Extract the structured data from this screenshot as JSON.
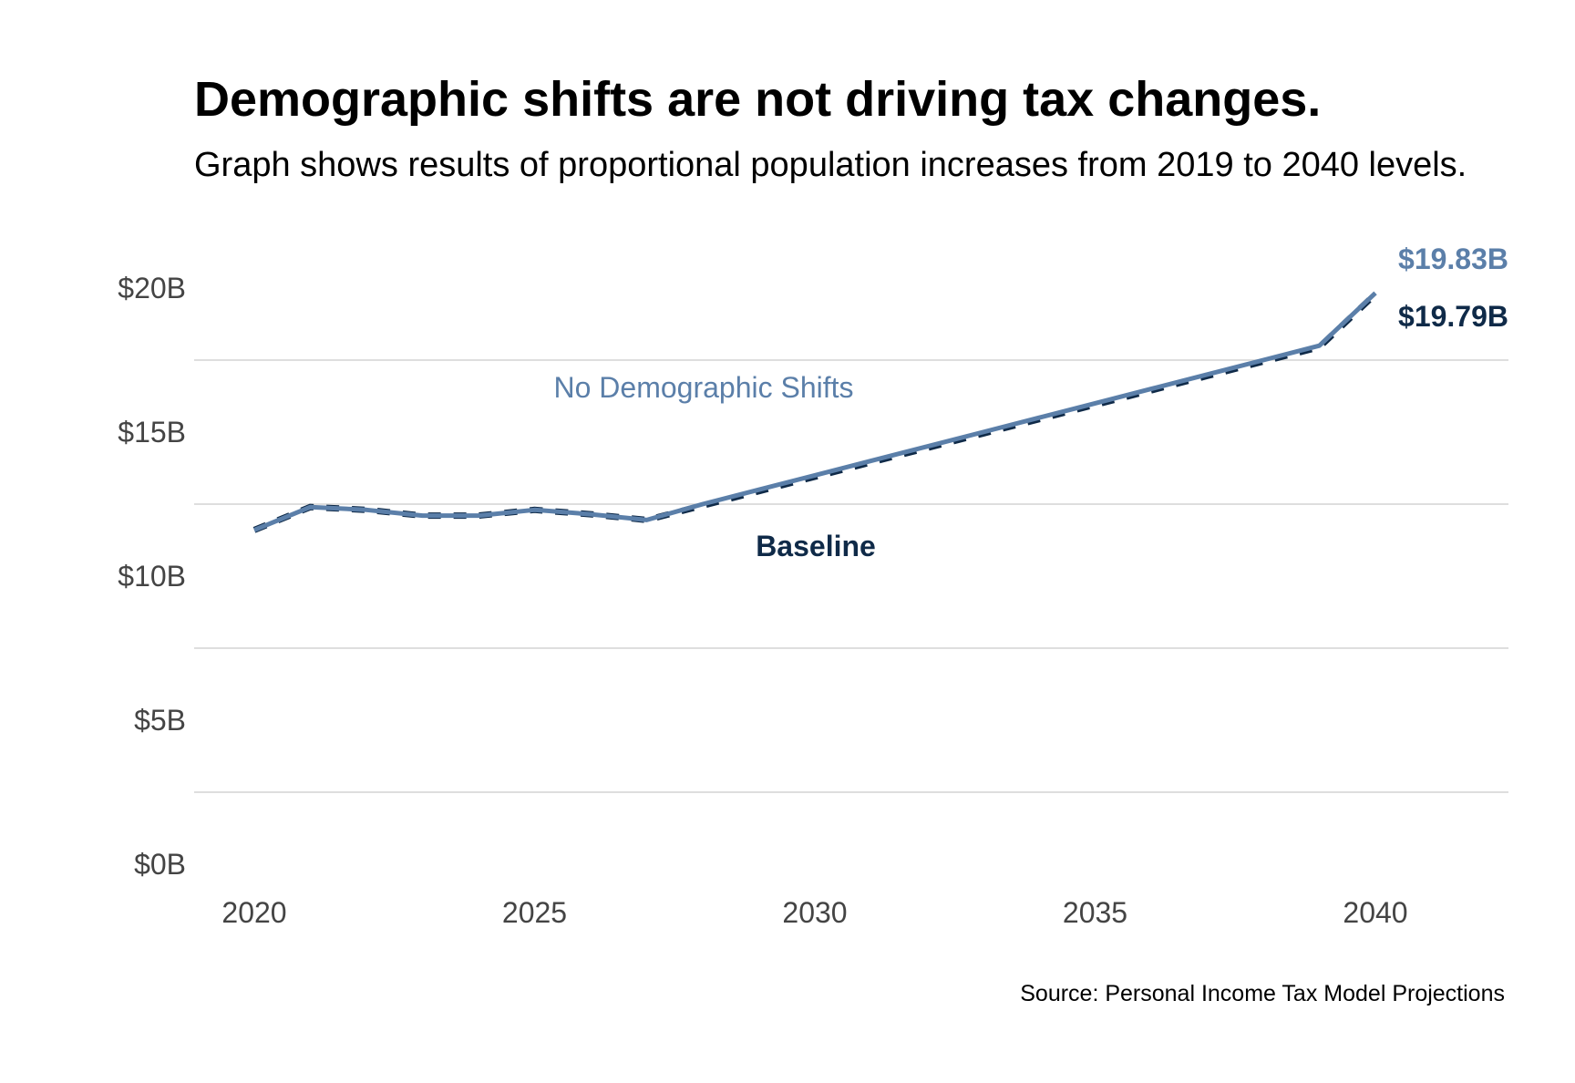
{
  "title": "Demographic shifts are not driving tax changes.",
  "subtitle": "Graph shows results of proportional population increases from 2019 to 2040 levels.",
  "source": "Source: Personal Income Tax Model Projections",
  "colors": {
    "no_shift": "#5b7fa9",
    "baseline": "#0f2a48",
    "grid": "#d4d4d4",
    "tick_text": "#444444"
  },
  "chart_data": {
    "type": "line",
    "grid": true,
    "ylim": [
      0,
      20
    ],
    "xlim": [
      2019,
      2042
    ],
    "y_ticks": [
      {
        "value": 0,
        "label": "$0B"
      },
      {
        "value": 5,
        "label": "$5B"
      },
      {
        "value": 10,
        "label": "$10B"
      },
      {
        "value": 15,
        "label": "$15B"
      },
      {
        "value": 20,
        "label": "$20B"
      }
    ],
    "x_ticks": [
      {
        "value": 2020,
        "label": "2020"
      },
      {
        "value": 2025,
        "label": "2025"
      },
      {
        "value": 2030,
        "label": "2030"
      },
      {
        "value": 2035,
        "label": "2035"
      },
      {
        "value": 2040,
        "label": "2040"
      }
    ],
    "x": [
      2020,
      2021,
      2022,
      2023,
      2024,
      2025,
      2026,
      2027,
      2028,
      2029,
      2030,
      2031,
      2032,
      2033,
      2034,
      2035,
      2036,
      2037,
      2038,
      2039,
      2040
    ],
    "series": [
      {
        "name": "Baseline",
        "style": "dashed",
        "values": [
          11.6,
          12.4,
          12.3,
          12.1,
          12.1,
          12.3,
          12.15,
          11.95,
          12.45,
          12.95,
          13.45,
          13.95,
          14.45,
          14.95,
          15.45,
          15.95,
          16.45,
          16.95,
          17.45,
          17.95,
          19.79
        ],
        "end_label": "$19.79B",
        "label": "Baseline"
      },
      {
        "name": "No Demographic Shifts",
        "style": "solid",
        "values": [
          11.6,
          12.4,
          12.3,
          12.1,
          12.1,
          12.3,
          12.15,
          11.95,
          12.5,
          13.0,
          13.5,
          14.0,
          14.5,
          15.0,
          15.5,
          16.0,
          16.5,
          17.0,
          17.5,
          18.0,
          19.83
        ],
        "end_label": "$19.83B",
        "label": "No Demographic Shifts"
      }
    ]
  }
}
